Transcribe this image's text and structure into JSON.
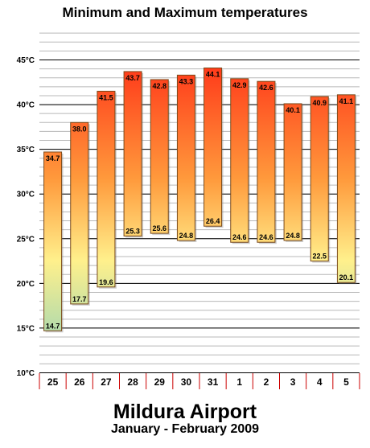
{
  "chart_data": {
    "type": "bar",
    "title": "Minimum and Maximum temperatures",
    "categories": [
      "25",
      "26",
      "27",
      "28",
      "29",
      "30",
      "31",
      "1",
      "2",
      "3",
      "4",
      "5"
    ],
    "series": [
      {
        "name": "Maximum",
        "values": [
          34.7,
          38.0,
          41.5,
          43.7,
          42.8,
          43.3,
          44.1,
          42.9,
          42.6,
          40.1,
          40.9,
          41.1
        ]
      },
      {
        "name": "Minimum",
        "values": [
          14.7,
          17.7,
          19.6,
          25.3,
          25.6,
          24.8,
          26.4,
          24.6,
          24.6,
          24.8,
          22.5,
          20.1
        ]
      }
    ],
    "max_labels": [
      "34.7",
      "38.0",
      "41.5",
      "43.7",
      "42.8",
      "43.3",
      "44.1",
      "42.9",
      "42.6",
      "40.1",
      "40.9",
      "41.1"
    ],
    "min_labels": [
      "14.7",
      "17.7",
      "19.6",
      "25.3",
      "25.6",
      "24.8",
      "26.4",
      "24.6",
      "24.6",
      "24.8",
      "22.5",
      "20.1"
    ],
    "ylim": [
      10,
      48
    ],
    "yticks": [
      10,
      15,
      20,
      25,
      30,
      35,
      40,
      45
    ],
    "ytick_labels": [
      "10°C",
      "15°C",
      "20°C",
      "25°C",
      "30°C",
      "35°C",
      "40°C",
      "45°C"
    ],
    "minor_grid_step": 1,
    "grid": true,
    "xlabel": "",
    "ylabel": "",
    "colors": {
      "hot": "#ff3a1a",
      "warm": "#ff9a3c",
      "mild": "#fff08c",
      "cool": "#a8d8b0",
      "bar_border": "#7a4a1a",
      "grid_major": "#000000",
      "grid_minor": "#b8b8b8",
      "x_separator": "#cc0000"
    }
  },
  "footer": {
    "title": "Mildura Airport",
    "subtitle": "January - February 2009"
  }
}
